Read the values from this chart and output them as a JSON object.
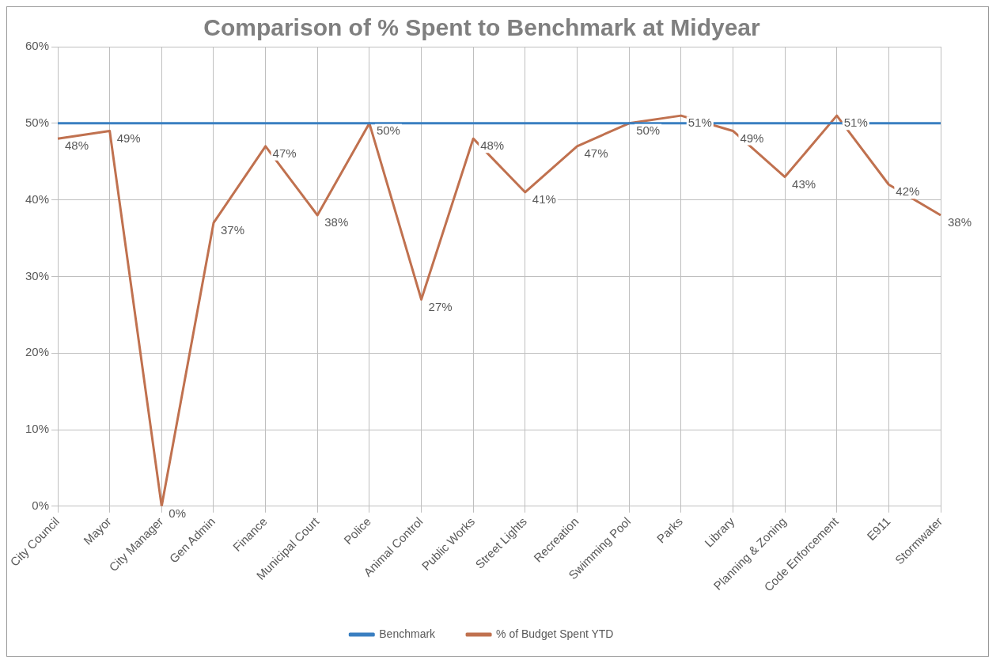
{
  "chart_data": {
    "type": "line",
    "title": "Comparison of % Spent to Benchmark at Midyear",
    "categories": [
      "City Council",
      "Mayor",
      "City Manager",
      "Gen Admin",
      "Finance",
      "Municipal Court",
      "Police",
      "Animal Control",
      "Public Works",
      "Street Lights",
      "Recreation",
      "Swimming Pool",
      "Parks",
      "Library",
      "Planning & Zoning",
      "Code Enforcement",
      "E911",
      "Stormwater"
    ],
    "series": [
      {
        "name": "Benchmark",
        "color": "#3a7fc1",
        "values": [
          50,
          50,
          50,
          50,
          50,
          50,
          50,
          50,
          50,
          50,
          50,
          50,
          50,
          50,
          50,
          50,
          50,
          50
        ]
      },
      {
        "name": "% of Budget Spent YTD",
        "color": "#c0714f",
        "values": [
          48,
          49,
          0,
          37,
          47,
          38,
          50,
          27,
          48,
          41,
          47,
          50,
          51,
          49,
          43,
          51,
          42,
          38
        ],
        "value_labels": [
          "48%",
          "49%",
          "0%",
          "37%",
          "47%",
          "38%",
          "50%",
          "27%",
          "48%",
          "41%",
          "47%",
          "50%",
          "51%",
          "49%",
          "43%",
          "51%",
          "42%",
          "38%"
        ]
      }
    ],
    "ylim": [
      0,
      60
    ],
    "yticks": [
      {
        "value": 0,
        "label": "0%"
      },
      {
        "value": 10,
        "label": "10%"
      },
      {
        "value": 20,
        "label": "20%"
      },
      {
        "value": 30,
        "label": "30%"
      },
      {
        "value": 40,
        "label": "40%"
      },
      {
        "value": 50,
        "label": "50%"
      },
      {
        "value": 60,
        "label": "60%"
      }
    ],
    "grid": true,
    "legend": "bottom",
    "marker": "none",
    "line_style": "solid"
  }
}
